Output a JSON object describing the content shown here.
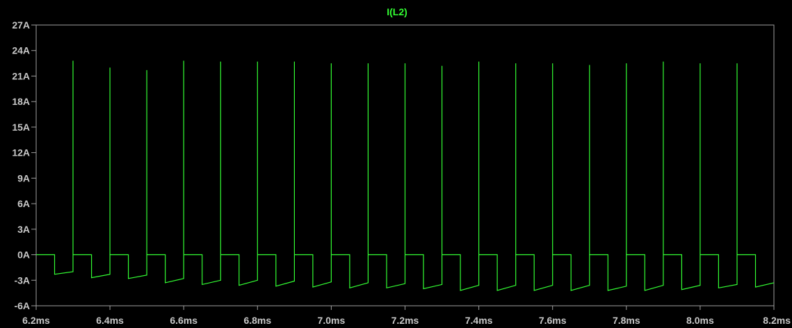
{
  "chart_data": {
    "type": "line",
    "title": "I(L2)",
    "xlabel": "",
    "ylabel": "",
    "xlim": [
      6.2,
      8.2
    ],
    "ylim": [
      -6,
      27
    ],
    "x_unit": "ms",
    "y_unit": "A",
    "x_ticks": [
      "6.2ms",
      "6.4ms",
      "6.6ms",
      "6.8ms",
      "7.0ms",
      "7.2ms",
      "7.4ms",
      "7.6ms",
      "7.8ms",
      "8.0ms",
      "8.2ms"
    ],
    "y_ticks": [
      "27A",
      "24A",
      "21A",
      "18A",
      "15A",
      "12A",
      "9A",
      "6A",
      "3A",
      "0A",
      "-3A",
      "-6A"
    ],
    "grid": false,
    "colors": {
      "background": "#000000",
      "frame": "#a0a0a0",
      "tick_label": "#c8c8c8",
      "trace": "#33ff33"
    },
    "series": [
      {
        "name": "I(L2)",
        "x": [
          6.2,
          6.25,
          6.25,
          6.3,
          6.3,
          6.3,
          6.35,
          6.35,
          6.4,
          6.4,
          6.4,
          6.45,
          6.45,
          6.5,
          6.5,
          6.5,
          6.55,
          6.55,
          6.6,
          6.6,
          6.6,
          6.65,
          6.65,
          6.7,
          6.7,
          6.7,
          6.75,
          6.75,
          6.8,
          6.8,
          6.8,
          6.85,
          6.85,
          6.9,
          6.9,
          6.9,
          6.95,
          6.95,
          7.0,
          7.0,
          7.0,
          7.05,
          7.05,
          7.1,
          7.1,
          7.1,
          7.15,
          7.15,
          7.2,
          7.2,
          7.2,
          7.25,
          7.25,
          7.3,
          7.3,
          7.3,
          7.35,
          7.35,
          7.4,
          7.4,
          7.4,
          7.45,
          7.45,
          7.5,
          7.5,
          7.5,
          7.55,
          7.55,
          7.6,
          7.6,
          7.6,
          7.65,
          7.65,
          7.7,
          7.7,
          7.7,
          7.75,
          7.75,
          7.8,
          7.8,
          7.8,
          7.85,
          7.85,
          7.9,
          7.9,
          7.9,
          7.95,
          7.95,
          8.0,
          8.0,
          8.0,
          8.05,
          8.05,
          8.1,
          8.1,
          8.1,
          8.15,
          8.15,
          8.2
        ],
        "y": [
          0,
          0,
          -2.3,
          -2.0,
          22.8,
          0,
          0,
          -2.7,
          -2.3,
          22.0,
          0,
          0,
          -2.8,
          -2.4,
          21.7,
          0,
          0,
          -3.3,
          -2.8,
          22.8,
          0,
          0,
          -3.5,
          -3.0,
          22.7,
          0,
          0,
          -3.6,
          -3.0,
          22.7,
          0,
          0,
          -3.7,
          -3.1,
          22.7,
          0,
          0,
          -3.8,
          -3.2,
          22.5,
          0,
          0,
          -3.9,
          -3.3,
          22.5,
          0,
          0,
          -3.9,
          -3.4,
          22.5,
          0,
          0,
          -4.0,
          -3.5,
          22.2,
          0,
          0,
          -4.2,
          -3.6,
          22.7,
          0,
          0,
          -4.2,
          -3.6,
          22.5,
          0,
          0,
          -4.2,
          -3.6,
          22.5,
          0,
          0,
          -4.2,
          -3.6,
          22.3,
          0,
          0,
          -4.2,
          -3.7,
          22.5,
          0,
          0,
          -4.2,
          -3.6,
          22.7,
          0,
          0,
          -4.1,
          -3.6,
          22.5,
          0,
          0,
          -3.9,
          -3.5,
          22.5,
          0,
          0,
          -3.8,
          -3.3
        ]
      }
    ]
  }
}
